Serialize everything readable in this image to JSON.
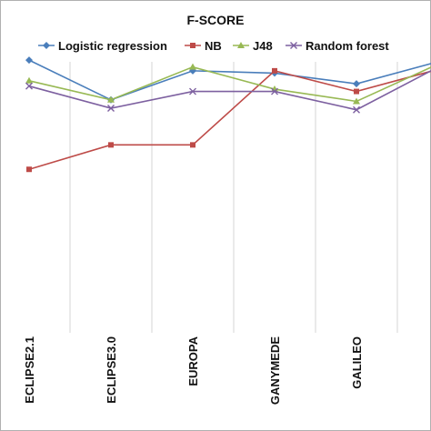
{
  "chart_data": {
    "type": "line",
    "title": "F-SCORE",
    "xlabel": "",
    "ylabel": "",
    "categories": [
      "ECLIPSE2.1",
      "ECLIPSE3.0",
      "EUROPA",
      "GANYMEDE",
      "GALILEO",
      ""
    ],
    "ylim": [
      0.55,
      0.95
    ],
    "grid": "vertical",
    "legend_position": "top",
    "series": [
      {
        "name": "Logistic regression",
        "color": "#4a7ebb",
        "marker": "diamond",
        "values": [
          0.907,
          0.855,
          0.893,
          0.89,
          0.876,
          0.905
        ]
      },
      {
        "name": "NB",
        "color": "#be4b48",
        "marker": "square",
        "values": [
          0.764,
          0.796,
          0.796,
          0.893,
          0.866,
          0.895
        ]
      },
      {
        "name": "J48",
        "color": "#98b954",
        "marker": "triangle",
        "values": [
          0.88,
          0.855,
          0.898,
          0.869,
          0.853,
          0.902
        ]
      },
      {
        "name": "Random forest",
        "color": "#7d60a0",
        "marker": "x",
        "values": [
          0.873,
          0.844,
          0.866,
          0.866,
          0.842,
          0.898
        ]
      }
    ]
  }
}
